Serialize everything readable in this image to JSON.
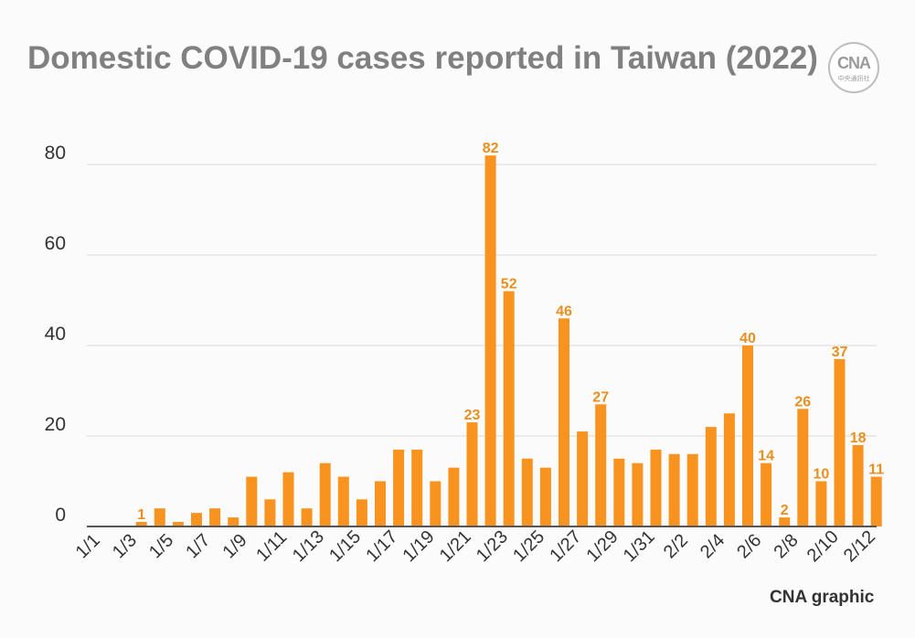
{
  "title": "Domestic COVID-19 cases reported in Taiwan (2022)",
  "logo": {
    "mark": "CNA",
    "sub": "中央通訊社"
  },
  "credit": "CNA graphic",
  "colors": {
    "bar": "#f7931e",
    "label": "#e88f1e",
    "axis": "#555555",
    "grid": "#d9d9d9",
    "tick_text": "#333333"
  },
  "chart_data": {
    "type": "bar",
    "title": "Domestic COVID-19 cases reported in Taiwan (2022)",
    "xlabel": "",
    "ylabel": "",
    "ylim": [
      0,
      80
    ],
    "yticks": [
      0,
      20,
      40,
      60,
      80
    ],
    "grid": true,
    "categories": [
      "1/1",
      "1/2",
      "1/3",
      "1/4",
      "1/5",
      "1/6",
      "1/7",
      "1/8",
      "1/9",
      "1/10",
      "1/11",
      "1/12",
      "1/13",
      "1/14",
      "1/15",
      "1/16",
      "1/17",
      "1/18",
      "1/19",
      "1/20",
      "1/21",
      "1/22",
      "1/23",
      "1/24",
      "1/25",
      "1/26",
      "1/27",
      "1/28",
      "1/29",
      "1/30",
      "1/31",
      "2/1",
      "2/2",
      "2/3",
      "2/4",
      "2/5",
      "2/6",
      "2/7",
      "2/8",
      "2/9",
      "2/10",
      "2/11",
      "2/12"
    ],
    "tick_labels": [
      "1/1",
      "1/3",
      "1/5",
      "1/7",
      "1/9",
      "1/11",
      "1/13",
      "1/15",
      "1/17",
      "1/19",
      "1/21",
      "1/23",
      "1/25",
      "1/27",
      "1/29",
      "1/31",
      "2/2",
      "2/4",
      "2/6",
      "2/8",
      "2/10",
      "2/12"
    ],
    "values": [
      0,
      0,
      1,
      4,
      1,
      3,
      4,
      2,
      11,
      6,
      12,
      4,
      14,
      11,
      6,
      10,
      17,
      17,
      10,
      13,
      23,
      82,
      52,
      15,
      13,
      46,
      21,
      27,
      15,
      14,
      17,
      16,
      16,
      22,
      25,
      40,
      14,
      2,
      26,
      10,
      37,
      18,
      11
    ],
    "labeled": [
      "1/3",
      "1/21",
      "1/22",
      "1/23",
      "1/26",
      "1/28",
      "2/5",
      "2/6",
      "2/7",
      "2/8",
      "2/9",
      "2/10",
      "2/11",
      "2/12"
    ]
  }
}
